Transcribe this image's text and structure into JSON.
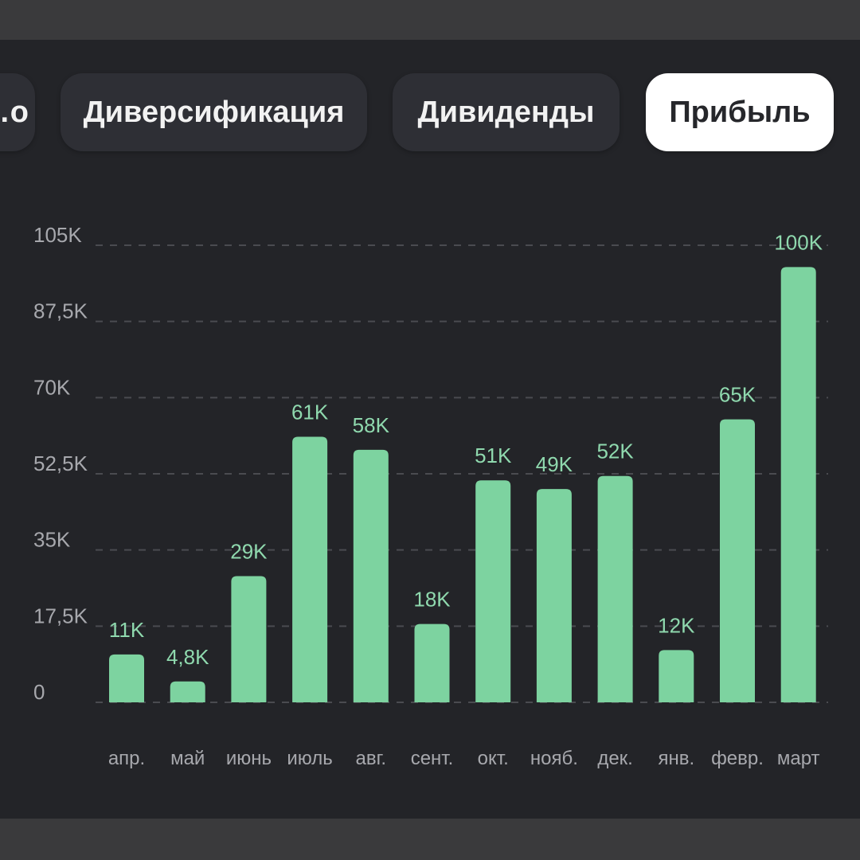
{
  "tabs": [
    {
      "label": "…о",
      "active": false
    },
    {
      "label": "Диверсификация",
      "active": false
    },
    {
      "label": "Дивиденды",
      "active": false
    },
    {
      "label": "Прибыль",
      "active": true
    }
  ],
  "colors": {
    "background": "#232428",
    "bar": "#7dd3a0",
    "value_label": "#8fd9ae",
    "axis_text": "#a7a8ad",
    "grid": "#4a4b50"
  },
  "chart_data": {
    "type": "bar",
    "title": "",
    "xlabel": "",
    "ylabel": "",
    "categories": [
      "апр.",
      "май",
      "июнь",
      "июль",
      "авг.",
      "сент.",
      "окт.",
      "нояб.",
      "дек.",
      "янв.",
      "февр.",
      "март"
    ],
    "values": [
      11000,
      4800,
      29000,
      61000,
      58000,
      18000,
      51000,
      49000,
      52000,
      12000,
      65000,
      100000
    ],
    "value_labels": [
      "11K",
      "4,8K",
      "29K",
      "61K",
      "58K",
      "18K",
      "51K",
      "49K",
      "52K",
      "12K",
      "65K",
      "100K"
    ],
    "y_ticks": [
      0,
      17500,
      35000,
      52500,
      70000,
      87500,
      105000
    ],
    "y_tick_labels": [
      "0",
      "17,5K",
      "35K",
      "52,5K",
      "70K",
      "87,5K",
      "105K"
    ],
    "ylim": [
      0,
      105000
    ],
    "grid": true
  }
}
